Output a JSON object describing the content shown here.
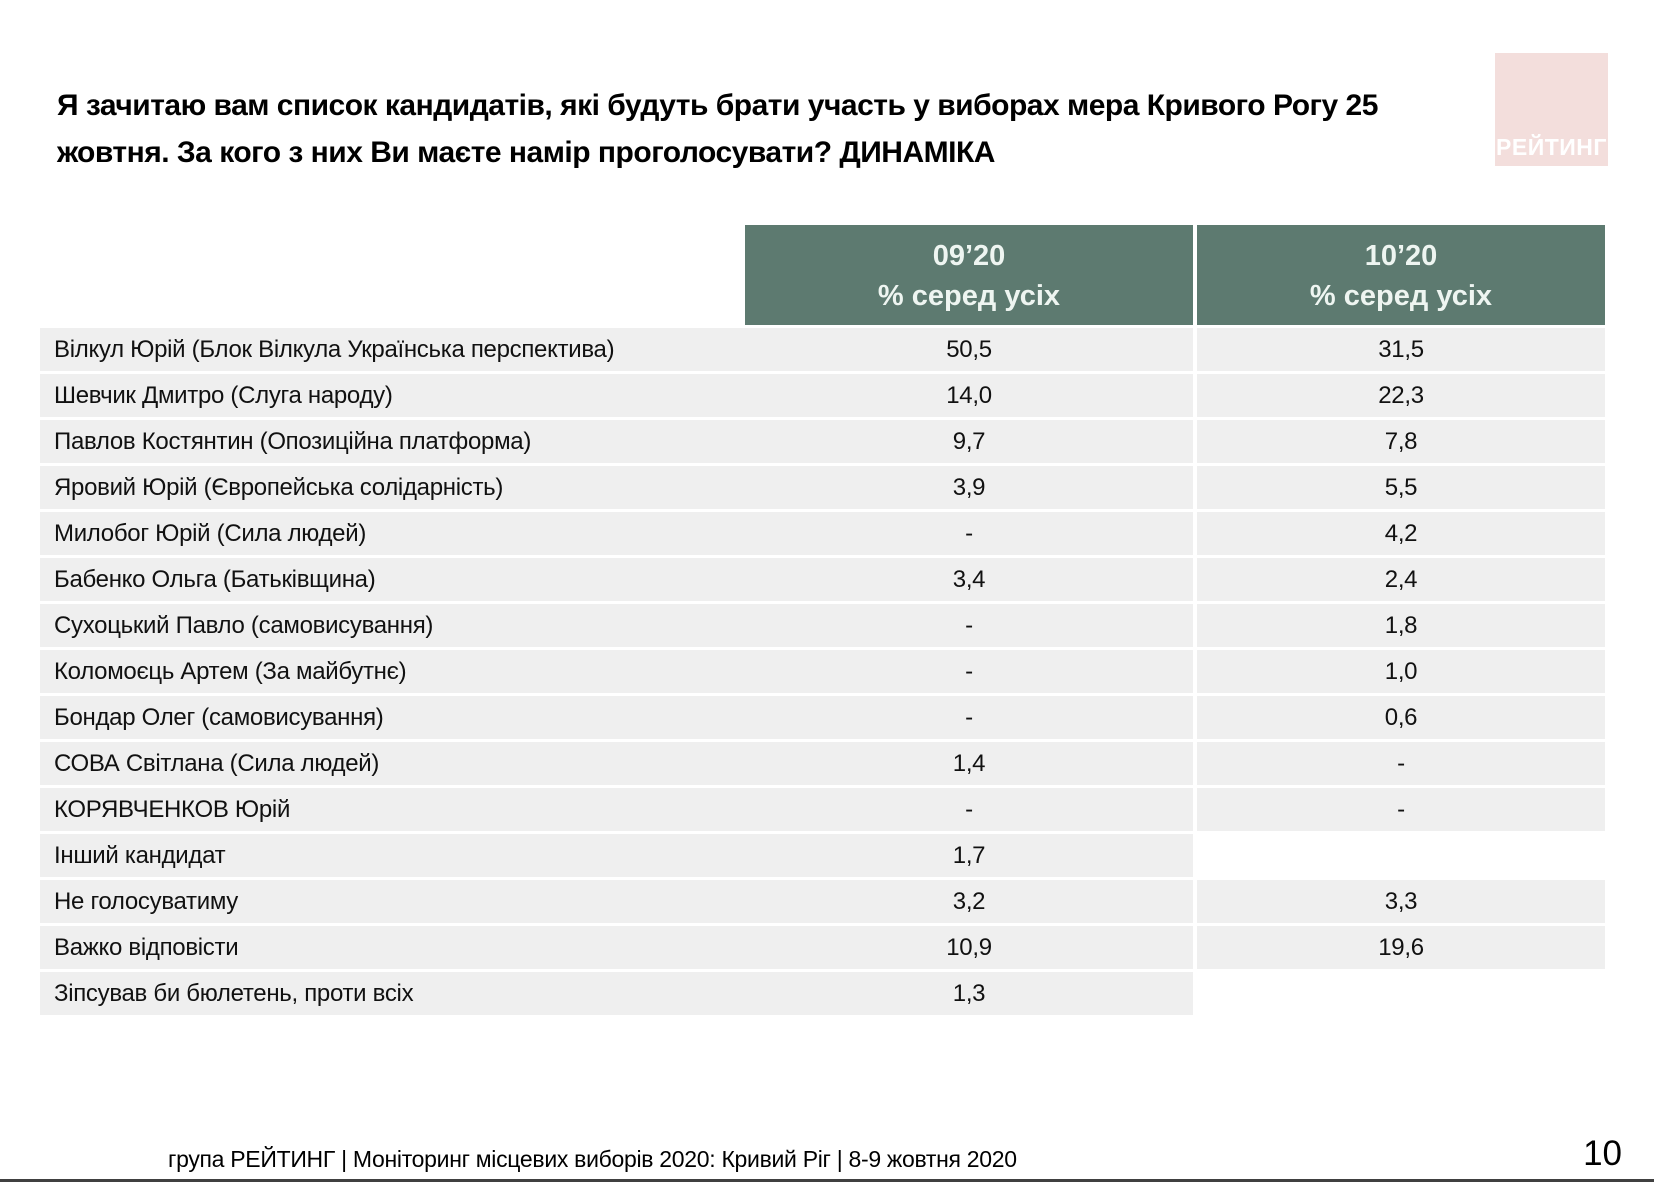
{
  "slide": {
    "title": "Я зачитаю вам список кандидатів, які будуть брати участь у виборах мера Кривого Рогу 25\nжовтня. За кого з них Ви маєте намір проголосувати? ДИНАМІКА",
    "logo_text": "РЕЙТИНГ",
    "footer_text": "група РЕЙТИНГ  | Моніторинг місцевих виборів 2020: Кривий Ріг |  8-9 жовтня 2020",
    "page_number": "10"
  },
  "colors": {
    "header_bg": "#5d7a70",
    "row_bg": "#efefef",
    "logo_bg": "#f3dedc"
  },
  "chart_data": {
    "type": "table",
    "title": "Я зачитаю вам список кандидатів, які будуть брати участь у виборах мера Кривого Рогу 25 жовтня. За кого з них Ви маєте намір проголосувати? ДИНАМІКА",
    "header": {
      "col1": {
        "period": "09’20",
        "label": "% серед усіх"
      },
      "col2": {
        "period": "10’20",
        "label": "% серед усіх"
      }
    },
    "rows": [
      {
        "name": "Вілкул Юрій (Блок Вілкула Українська перспектива)",
        "v0920": "50,5",
        "v1020": "31,5"
      },
      {
        "name": "Шевчик Дмитро (Слуга народу)",
        "v0920": "14,0",
        "v1020": "22,3"
      },
      {
        "name": "Павлов Костянтин (Опозиційна платформа)",
        "v0920": "9,7",
        "v1020": "7,8"
      },
      {
        "name": "Яровий Юрій (Європейська солідарність)",
        "v0920": "3,9",
        "v1020": "5,5"
      },
      {
        "name": "Милобог Юрій (Сила людей)",
        "v0920": "-",
        "v1020": "4,2"
      },
      {
        "name": "Бабенко Ольга (Батьківщина)",
        "v0920": "3,4",
        "v1020": "2,4"
      },
      {
        "name": "Сухоцький Павло (самовисування)",
        "v0920": "-",
        "v1020": "1,8"
      },
      {
        "name": "Коломоєць Артем (За майбутнє)",
        "v0920": "-",
        "v1020": "1,0"
      },
      {
        "name": "Бондар Олег (самовисування)",
        "v0920": "-",
        "v1020": "0,6"
      },
      {
        "name": "СОВА Світлана (Сила людей)",
        "v0920": "1,4",
        "v1020": "-"
      },
      {
        "name": "КОРЯВЧЕНКОВ Юрій",
        "v0920": "-",
        "v1020": "-"
      },
      {
        "name": "Інший кандидат",
        "v0920": "1,7",
        "v1020": null
      },
      {
        "name": "Не голосуватиму",
        "v0920": "3,2",
        "v1020": "3,3"
      },
      {
        "name": "Важко відповісти",
        "v0920": "10,9",
        "v1020": "19,6"
      },
      {
        "name": "Зіпсував би бюлетень, проти всіх",
        "v0920": "1,3",
        "v1020": null
      }
    ]
  }
}
